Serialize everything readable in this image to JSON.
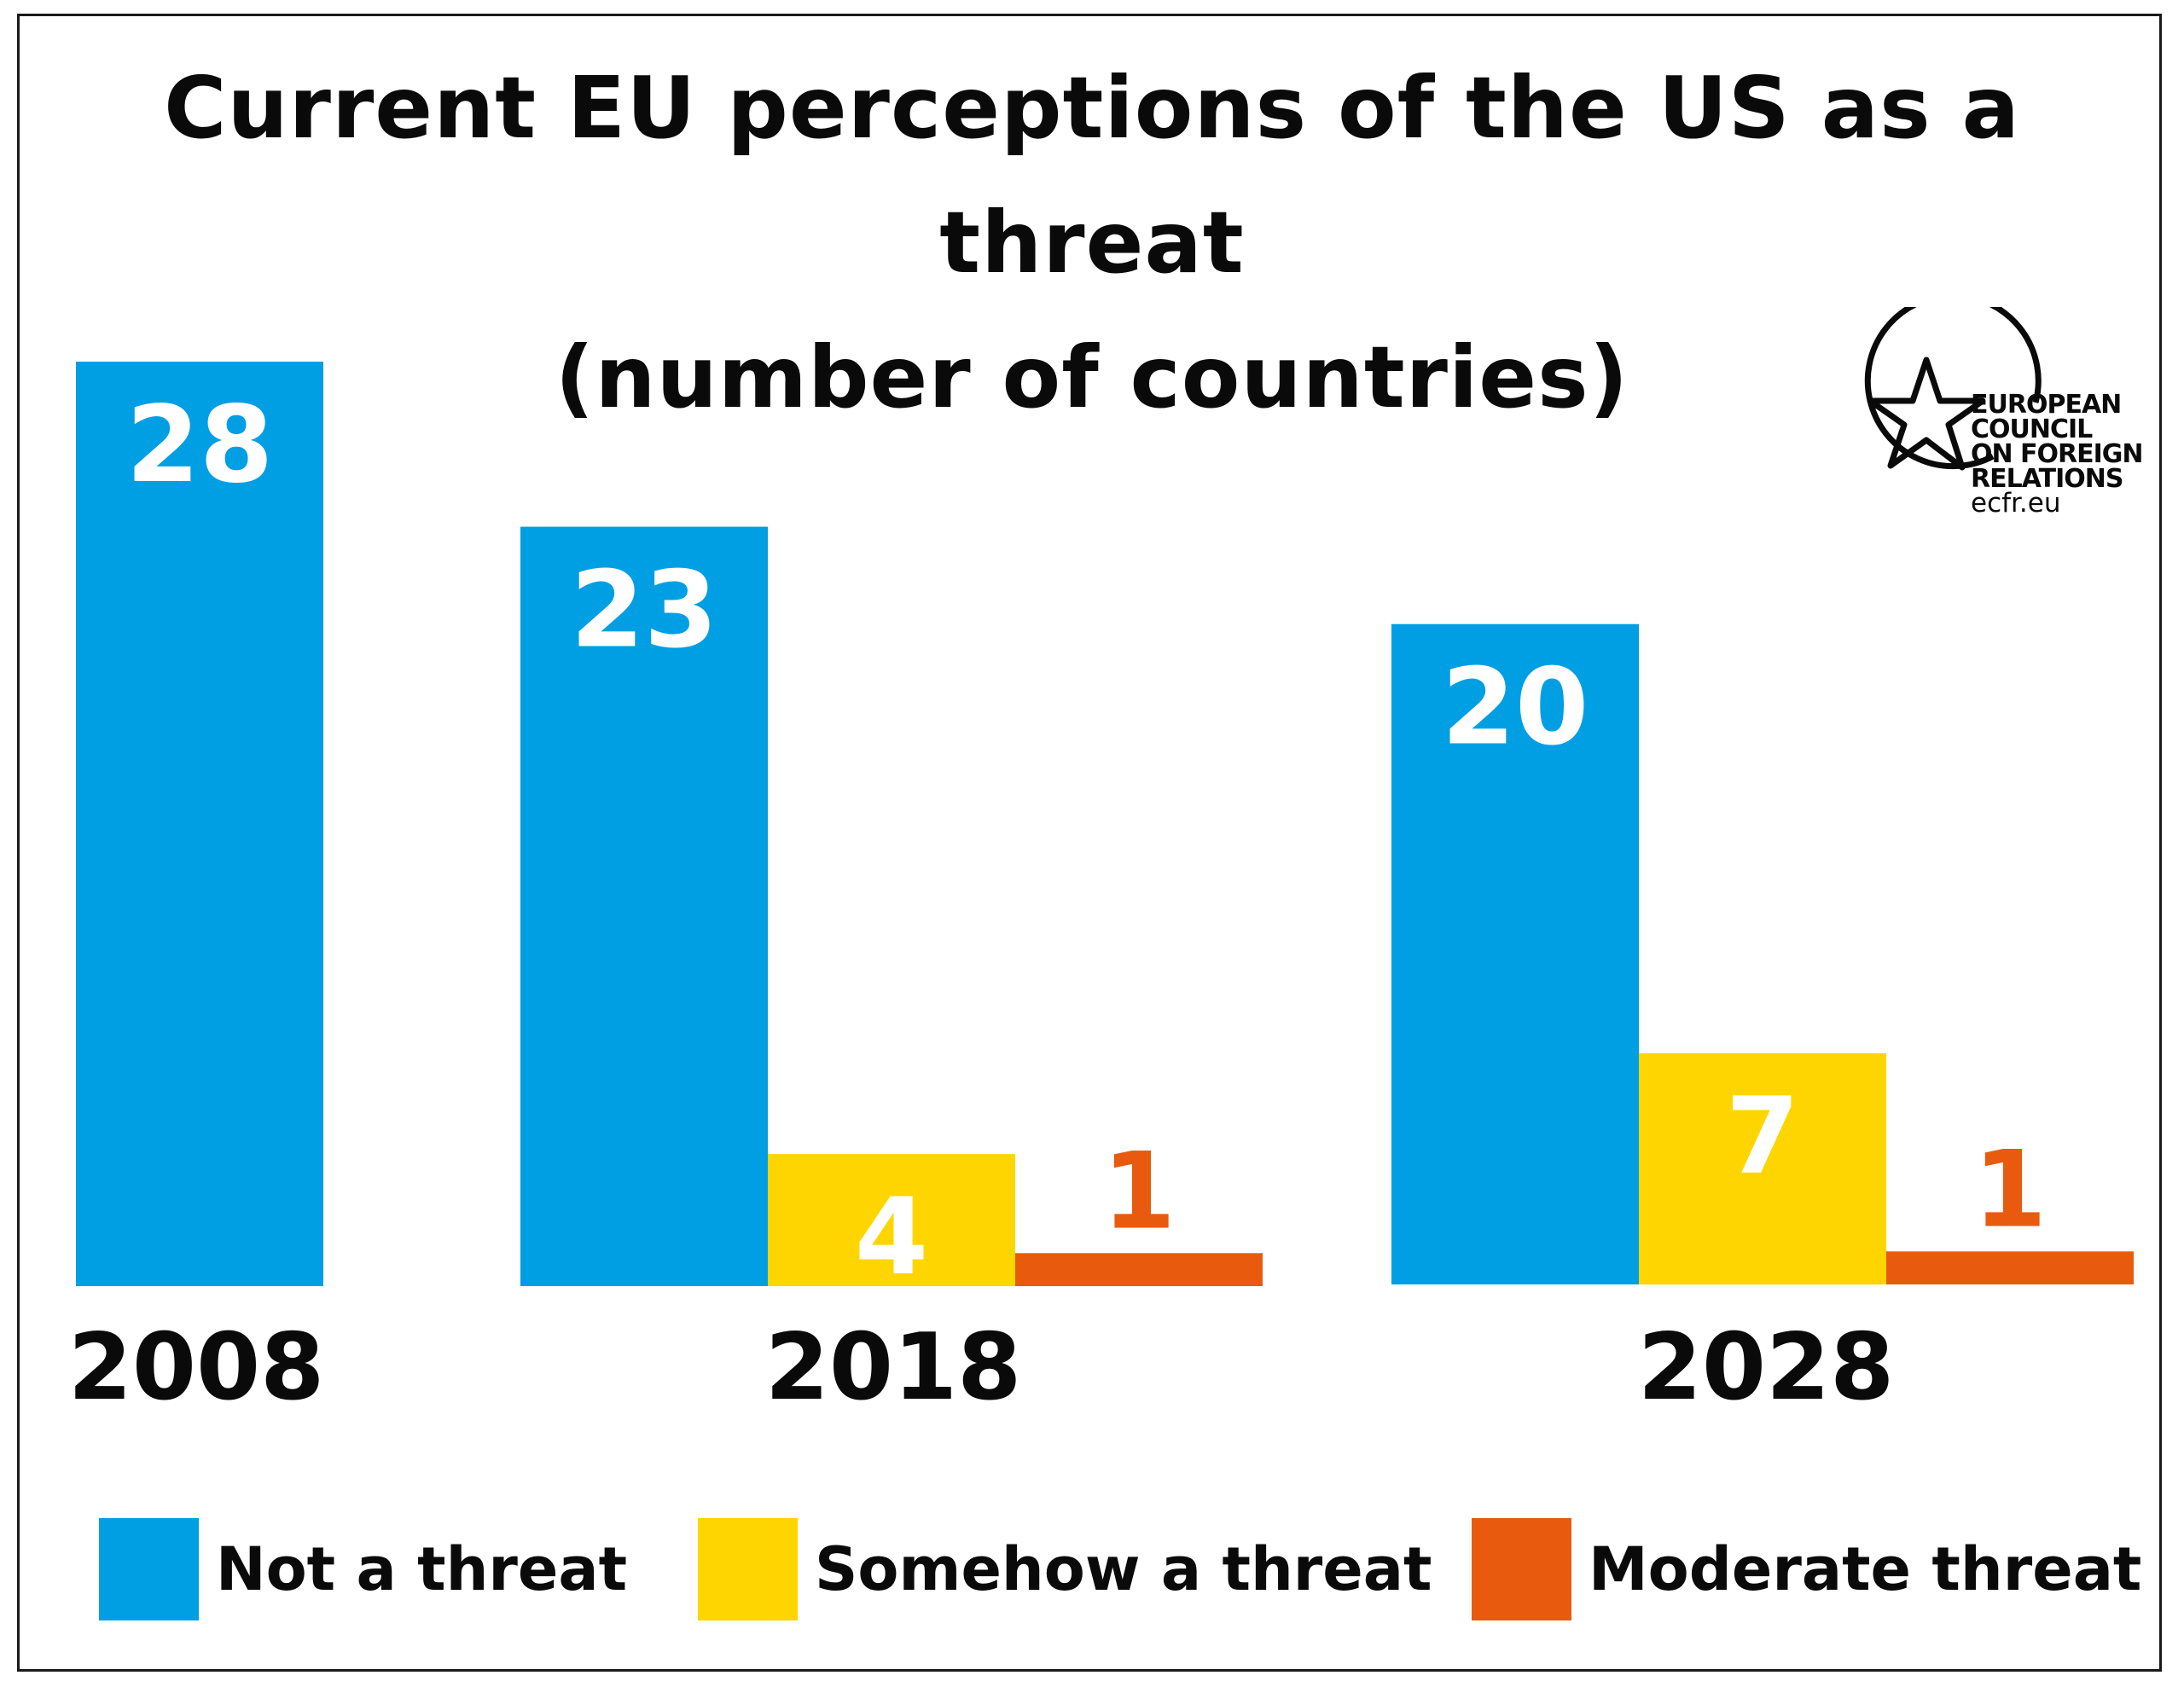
{
  "title_line1": "Current EU perceptions of the US as a threat",
  "title_line2": "(number of countries)",
  "logo": {
    "line1": "EUROPEAN",
    "line2": "COUNCIL",
    "line3": "ON FOREIGN",
    "line4": "RELATIONS",
    "url": "ecfr.eu"
  },
  "colors": {
    "not_a_threat": "#009FE3",
    "somehow": "#FFD500",
    "moderate": "#E85B0E"
  },
  "chart_data": {
    "type": "bar",
    "title": "Current EU perceptions of the US as a threat (number of countries)",
    "categories": [
      "2008",
      "2018",
      "2028"
    ],
    "series": [
      {
        "name": "Not a threat",
        "values": [
          28,
          23,
          20
        ]
      },
      {
        "name": "Somehow a threat",
        "values": [
          null,
          4,
          7
        ]
      },
      {
        "name": "Moderate threat",
        "values": [
          null,
          1,
          1
        ]
      }
    ],
    "data_labels": true,
    "legend": "bottom",
    "grid": false,
    "ylim": [
      0,
      28
    ]
  }
}
